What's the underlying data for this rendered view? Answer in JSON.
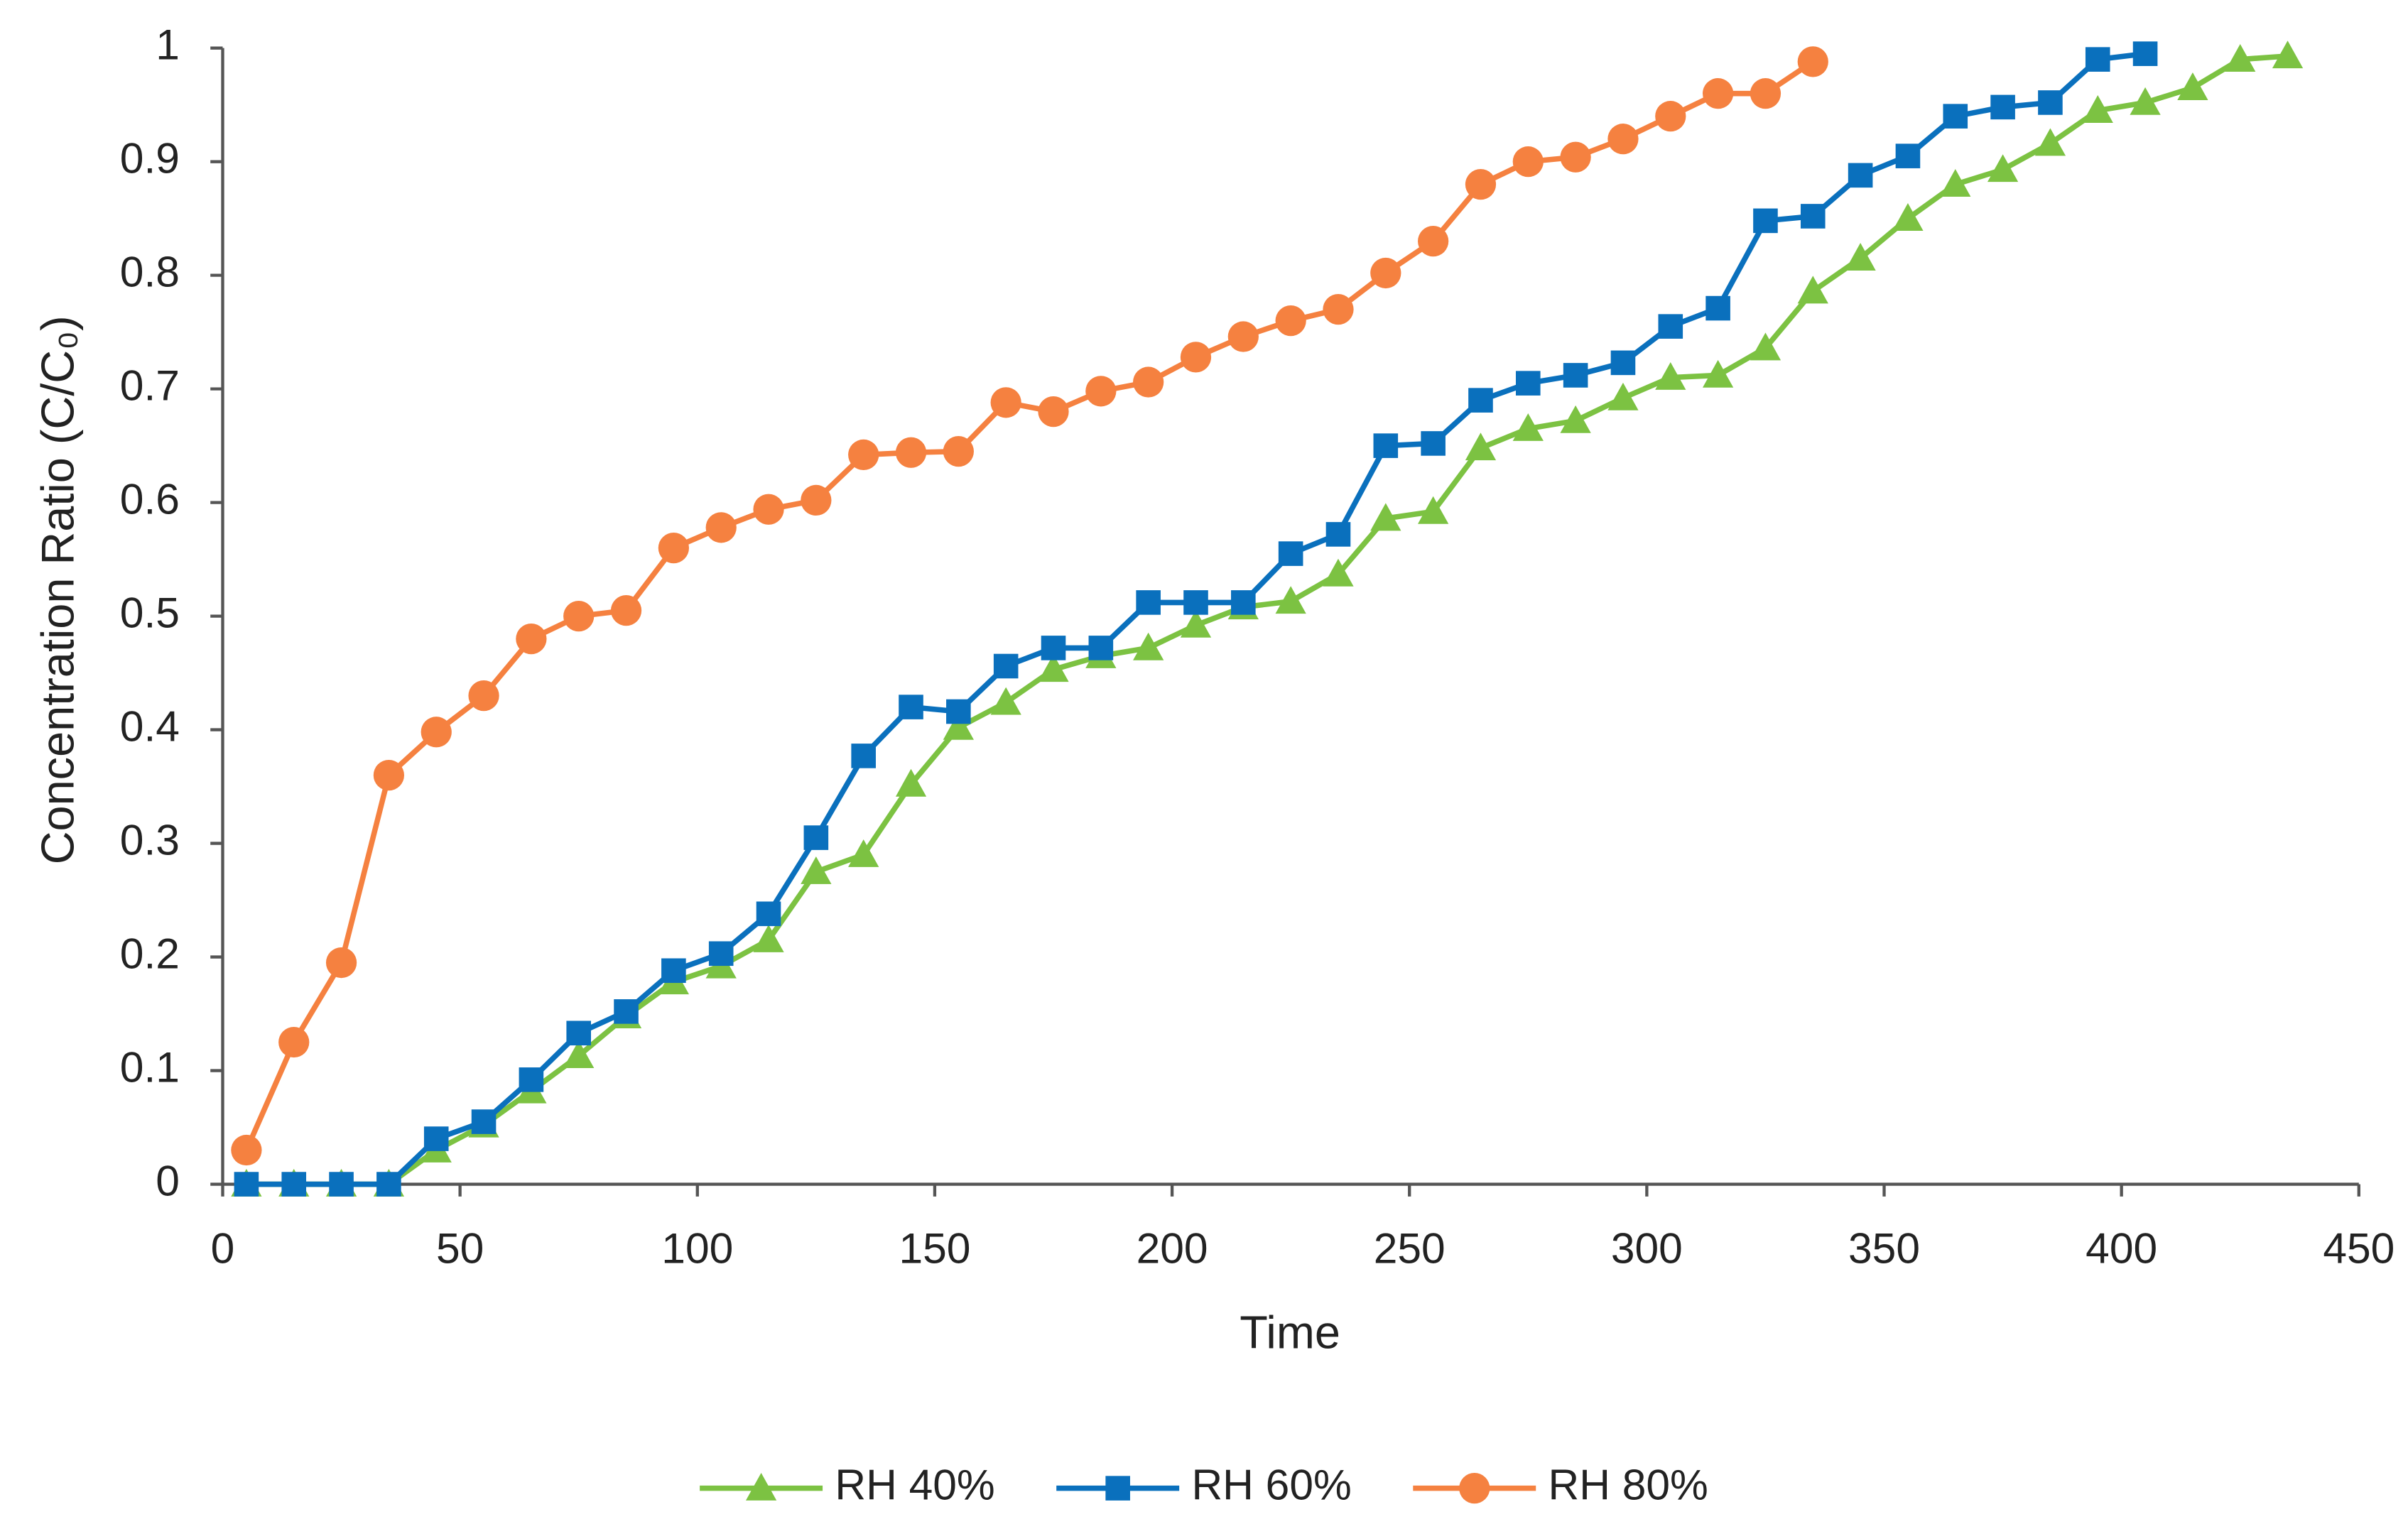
{
  "chart_data": {
    "type": "line",
    "x_label": "Time",
    "y_label": "Concentration Ratio (C/C₀)",
    "xlim": [
      0,
      450
    ],
    "xticks": [
      0,
      50,
      100,
      150,
      200,
      250,
      300,
      350,
      400,
      450
    ],
    "ylim": [
      0,
      1
    ],
    "yticks": [
      0,
      0.1,
      0.2,
      0.3,
      0.4,
      0.5,
      0.6,
      0.7,
      0.8,
      0.9,
      1
    ],
    "grid": false,
    "legend": "bottom",
    "series": [
      {
        "name": "RH 40%",
        "color": "#7cc242",
        "marker": "triangle",
        "x": [
          5,
          15,
          25,
          35,
          45,
          55,
          65,
          75,
          85,
          95,
          105,
          115,
          125,
          135,
          145,
          155,
          165,
          175,
          185,
          195,
          205,
          215,
          225,
          235,
          245,
          255,
          265,
          275,
          285,
          295,
          305,
          315,
          325,
          335,
          345,
          355,
          365,
          375,
          385,
          395,
          405,
          415,
          425,
          435
        ],
        "values": [
          0,
          0,
          0,
          0,
          0.03,
          0.052,
          0.082,
          0.113,
          0.148,
          0.178,
          0.192,
          0.215,
          0.275,
          0.29,
          0.352,
          0.402,
          0.424,
          0.453,
          0.465,
          0.472,
          0.492,
          0.508,
          0.513,
          0.537,
          0.586,
          0.592,
          0.648,
          0.665,
          0.672,
          0.692,
          0.71,
          0.712,
          0.736,
          0.786,
          0.815,
          0.85,
          0.88,
          0.893,
          0.916,
          0.945,
          0.952,
          0.965,
          0.99,
          0.993
        ]
      },
      {
        "name": "RH 60%",
        "color": "#0a70bd",
        "marker": "square",
        "x": [
          5,
          15,
          25,
          35,
          45,
          55,
          65,
          75,
          85,
          95,
          105,
          115,
          125,
          135,
          145,
          155,
          165,
          175,
          185,
          195,
          205,
          215,
          225,
          235,
          245,
          255,
          265,
          275,
          285,
          295,
          305,
          315,
          325,
          335,
          345,
          355,
          365,
          375,
          385,
          395,
          405
        ],
        "values": [
          0,
          0,
          0,
          0,
          0.04,
          0.055,
          0.092,
          0.133,
          0.152,
          0.188,
          0.203,
          0.238,
          0.305,
          0.377,
          0.42,
          0.416,
          0.456,
          0.472,
          0.472,
          0.512,
          0.512,
          0.512,
          0.555,
          0.572,
          0.65,
          0.652,
          0.69,
          0.705,
          0.712,
          0.723,
          0.755,
          0.771,
          0.848,
          0.852,
          0.888,
          0.905,
          0.94,
          0.948,
          0.952,
          0.99,
          0.995
        ]
      },
      {
        "name": "RH 80%",
        "color": "#f58140",
        "marker": "circle",
        "x": [
          5,
          15,
          25,
          35,
          45,
          55,
          65,
          75,
          85,
          95,
          105,
          115,
          125,
          135,
          145,
          155,
          165,
          175,
          185,
          195,
          205,
          215,
          225,
          235,
          245,
          255,
          265,
          275,
          285,
          295,
          305,
          315,
          325,
          335
        ],
        "values": [
          0.03,
          0.125,
          0.195,
          0.36,
          0.398,
          0.43,
          0.48,
          0.5,
          0.505,
          0.56,
          0.578,
          0.594,
          0.602,
          0.642,
          0.644,
          0.645,
          0.688,
          0.68,
          0.698,
          0.706,
          0.728,
          0.746,
          0.76,
          0.77,
          0.802,
          0.83,
          0.88,
          0.9,
          0.904,
          0.92,
          0.94,
          0.96,
          0.96,
          0.988
        ]
      }
    ]
  }
}
